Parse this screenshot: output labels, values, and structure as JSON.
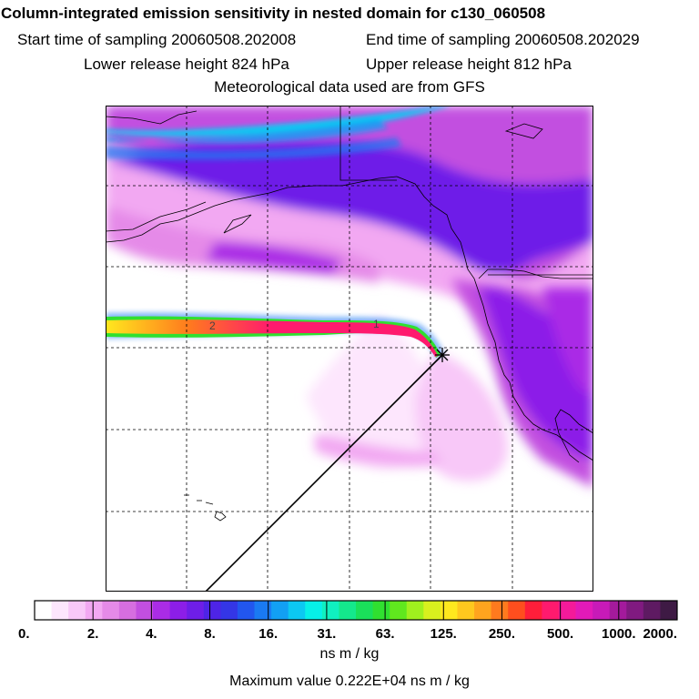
{
  "header": {
    "title": "Column-integrated emission sensitivity in nested domain for c130_060508",
    "start_label": "Start time of sampling 20060508.202008",
    "end_label": "End time of sampling 20060508.202029",
    "lower_label": "Lower release height  824 hPa",
    "upper_label": "Upper release height  812 hPa",
    "met_label": "Meteorological data used are from GFS"
  },
  "map": {
    "track_labels": [
      "2",
      "1"
    ],
    "release_marker": "star-marker"
  },
  "legend": {
    "ticks": [
      "0.",
      "2.",
      "4.",
      "8.",
      "16.",
      "31.",
      "63.",
      "125.",
      "250.",
      "500.",
      "1000.",
      "2000."
    ],
    "colors": [
      "#ffffff",
      "#fde6fd",
      "#f8c8f8",
      "#f2a8f2",
      "#e58ae8",
      "#d66ee0",
      "#c24fe0",
      "#aa2ce6",
      "#8c1ee8",
      "#6e1ee8",
      "#4e24e6",
      "#3436e6",
      "#2256ee",
      "#1a7af2",
      "#12a0f4",
      "#0cc8f2",
      "#06f0e8",
      "#10f0c0",
      "#14e88c",
      "#1ae05a",
      "#30e030",
      "#60e81e",
      "#a0f01e",
      "#d8f01e",
      "#ffe81e",
      "#ffc81e",
      "#ffa41e",
      "#ff7a1e",
      "#ff4e1e",
      "#ff1e3a",
      "#ff1a6e",
      "#f41a9a",
      "#e21ab8",
      "#c81ab8",
      "#a41a9c",
      "#801a80",
      "#5e1a62",
      "#3e1a44"
    ],
    "units": "ns m / kg",
    "max_label": "Maximum value  0.222E+04 ns m / kg"
  }
}
